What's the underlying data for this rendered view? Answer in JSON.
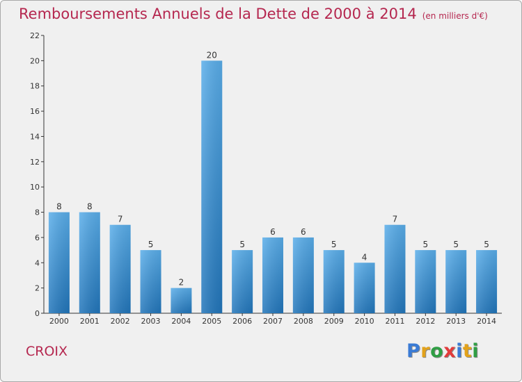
{
  "chart_data": {
    "type": "bar",
    "title": "Remboursements Annuels de la Dette de 2000 à 2014",
    "subtitle": "(en milliers d'€)",
    "categories": [
      "2000",
      "2001",
      "2002",
      "2003",
      "2004",
      "2005",
      "2006",
      "2007",
      "2008",
      "2009",
      "2010",
      "2011",
      "2012",
      "2013",
      "2014"
    ],
    "values": [
      8,
      8,
      7,
      5,
      2,
      20,
      5,
      6,
      6,
      5,
      4,
      7,
      5,
      5,
      5
    ],
    "data_labels": [
      "8",
      "8",
      "7",
      "5",
      "2",
      "20",
      "5",
      "6",
      "6",
      "5",
      "4",
      "7",
      "5",
      "5",
      "5"
    ],
    "xlabel": "",
    "ylabel": "",
    "ylim": [
      0,
      22
    ],
    "yticks": [
      0,
      2,
      4,
      6,
      8,
      10,
      12,
      14,
      16,
      18,
      20,
      22
    ],
    "grid": false,
    "bar_color": "#2e87cc"
  },
  "footer": {
    "commune": "CROIX",
    "brand": "Proxiti"
  },
  "colors": {
    "title": "#b5274f",
    "background": "#f0f0f0",
    "brand_letters": [
      "#3a7bd5",
      "#e2a21b",
      "#2f9e44",
      "#e23b3b",
      "#3a7bd5",
      "#e2a21b",
      "#2f9e44"
    ]
  }
}
